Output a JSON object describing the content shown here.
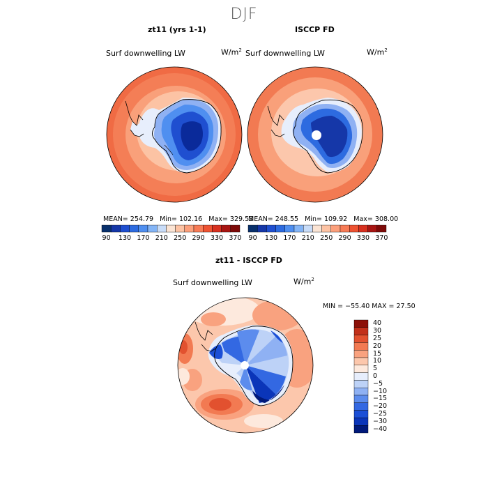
{
  "figure": {
    "title": "DJF"
  },
  "colors": {
    "abs": [
      "#08306b",
      "#1537a8",
      "#1f4fd0",
      "#2d6be0",
      "#4f8ff0",
      "#84b5f6",
      "#c8dcf8",
      "#fbe4d4",
      "#fdc3a4",
      "#fca07c",
      "#f77b56",
      "#ee5332",
      "#d7301f",
      "#a81512",
      "#7d0a08"
    ],
    "diff": [
      "#00197a",
      "#0a35b9",
      "#1b4fd6",
      "#3368e2",
      "#5c8ced",
      "#8fb1f3",
      "#bdd2f7",
      "#e7eefc",
      "#fde9dd",
      "#fcc7ac",
      "#f9a27f",
      "#f27a52",
      "#e2512f",
      "#c2301a",
      "#8c1008"
    ]
  },
  "panels": [
    {
      "id": "zt11",
      "title": "zt11 (yrs 1-1)",
      "variable": "Surf downwelling LW",
      "units": "W/m",
      "units_exp": "2",
      "stats": {
        "mean_label": "MEAN=",
        "mean": "254.79",
        "min_label": "Min=",
        "min": "102.16",
        "max_label": "Max=",
        "max": "329.53"
      }
    },
    {
      "id": "isccp",
      "title": "ISCCP FD",
      "variable": "Surf downwelling LW",
      "units": "W/m",
      "units_exp": "2",
      "stats": {
        "mean_label": "MEAN=",
        "mean": "248.55",
        "min_label": "Min=",
        "min": "109.92",
        "max_label": "Max=",
        "max": "308.00"
      }
    }
  ],
  "colorbar_abs": {
    "ticks": [
      "90",
      "130",
      "170",
      "210",
      "250",
      "290",
      "330",
      "370"
    ],
    "levels": [
      90,
      110,
      130,
      150,
      170,
      190,
      210,
      230,
      250,
      270,
      290,
      310,
      330,
      350,
      370
    ]
  },
  "diff_panel": {
    "title": "zt11 - ISCCP FD",
    "variable": "Surf downwelling LW",
    "units": "W/m",
    "units_exp": "2",
    "range_text": "MIN = −55.40  MAX =  27.50",
    "colorbar": {
      "ticks": [
        "40",
        "30",
        "25",
        "20",
        "15",
        "10",
        "5",
        "0",
        "−5",
        "−10",
        "−15",
        "−20",
        "−25",
        "−30",
        "−40"
      ],
      "levels": [
        -40,
        -30,
        -25,
        -20,
        -15,
        -10,
        -5,
        0,
        5,
        10,
        15,
        20,
        25,
        30,
        40
      ]
    }
  }
}
